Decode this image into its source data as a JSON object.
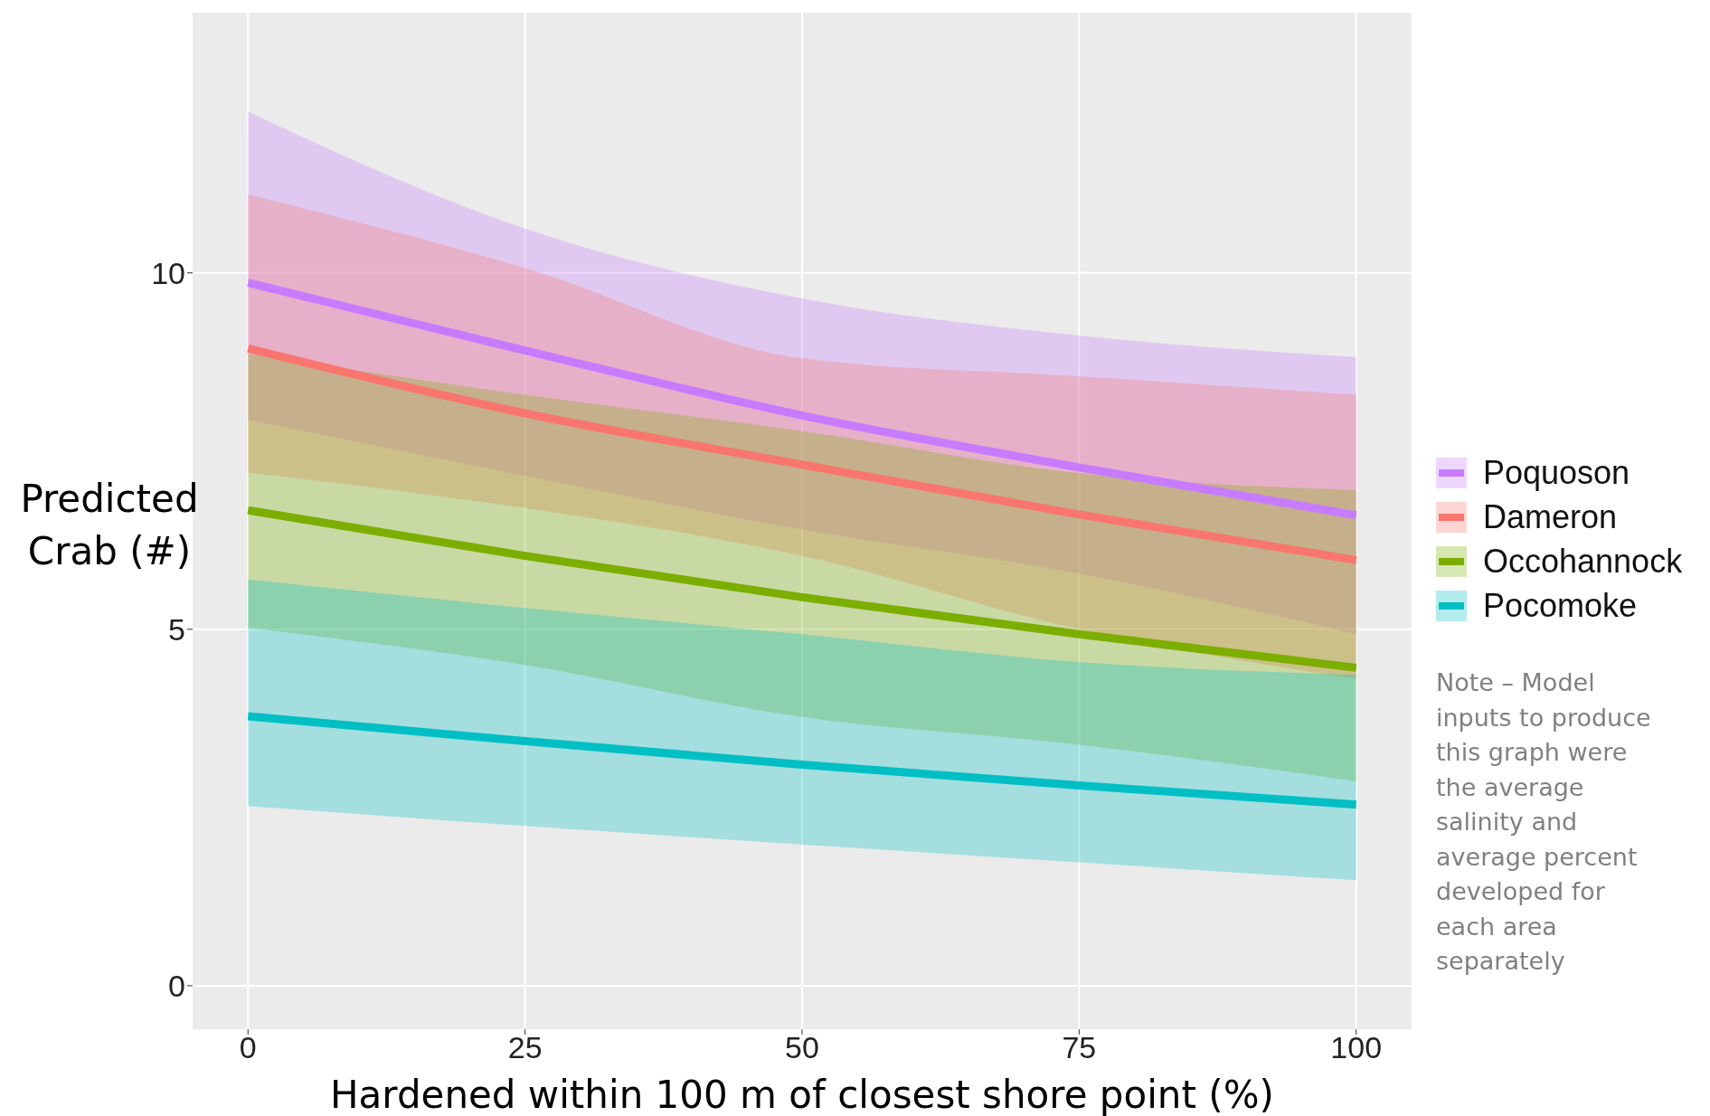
{
  "chart_data": {
    "type": "line",
    "xlabel": "Hardened within 100 m of closest shore point (%)",
    "ylabel": "Predicted Crab (#)",
    "x": [
      0,
      25,
      50,
      75,
      100
    ],
    "series": [
      {
        "name": "Poquoson",
        "color": "#c77cff",
        "values": [
          9.86,
          8.91,
          8.0,
          7.27,
          6.6
        ],
        "lower": [
          7.94,
          7.15,
          6.4,
          5.78,
          4.93
        ],
        "upper": [
          12.26,
          10.62,
          9.64,
          9.12,
          8.82
        ]
      },
      {
        "name": "Dameron",
        "color": "#f8766d",
        "values": [
          8.94,
          8.03,
          7.31,
          6.61,
          5.97
        ],
        "lower": [
          7.2,
          6.7,
          6.03,
          5.0,
          4.3
        ],
        "upper": [
          11.1,
          10.07,
          8.8,
          8.55,
          8.29
        ]
      },
      {
        "name": "Occohannock",
        "color": "#7cae00",
        "values": [
          6.67,
          6.03,
          5.45,
          4.93,
          4.46
        ],
        "lower": [
          5.02,
          4.5,
          3.77,
          3.38,
          2.87
        ],
        "upper": [
          8.86,
          8.29,
          7.78,
          7.19,
          6.95
        ]
      },
      {
        "name": "Pocomoke",
        "color": "#00bfc4",
        "values": [
          3.78,
          3.43,
          3.1,
          2.81,
          2.54
        ],
        "lower": [
          2.52,
          2.24,
          1.98,
          1.73,
          1.48
        ],
        "upper": [
          5.7,
          5.3,
          4.93,
          4.54,
          4.36
        ]
      }
    ],
    "xlim": [
      -5,
      105
    ],
    "xticks": [
      0,
      25,
      50,
      75,
      100
    ],
    "ylim": [
      -0.61,
      13.65
    ],
    "yticks": [
      0,
      5,
      10
    ],
    "grid": true,
    "legend": "right",
    "marker": "none",
    "line_style": "solid",
    "annotations": [
      "Note – Model inputs to produce this graph were the average salinity and average percent developed for each area separately"
    ]
  }
}
